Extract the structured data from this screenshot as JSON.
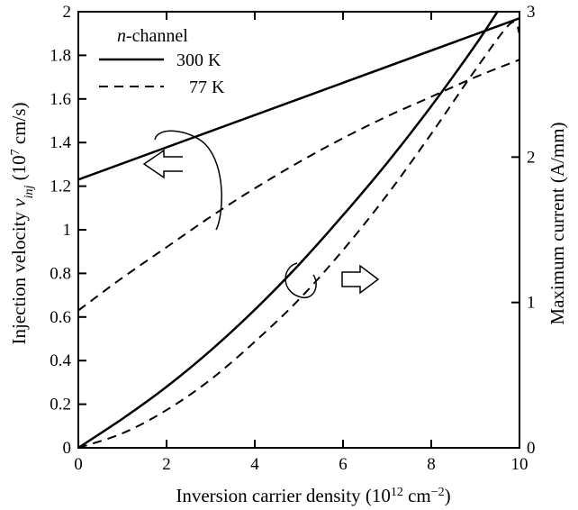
{
  "chart_data": {
    "type": "line",
    "xlabel": "Inversion carrier density (10¹² cm⁻²)",
    "ylabel_left": "Injection velocity v_inj (10⁷ cm/s)",
    "ylabel_right": "Maximum current (A/mm)",
    "xlim": [
      0,
      10
    ],
    "ylim_left": [
      0,
      2
    ],
    "ylim_right": [
      0,
      3
    ],
    "x_ticks": [
      "0",
      "2",
      "4",
      "6",
      "8",
      "10"
    ],
    "y_left_ticks": [
      "0",
      "0.2",
      "0.4",
      "0.6",
      "0.8",
      "1",
      "1.2",
      "1.4",
      "1.6",
      "1.8",
      "2"
    ],
    "y_right_ticks": [
      "0",
      "1",
      "2",
      "3"
    ],
    "grid": false,
    "legend": {
      "title": "n-channel",
      "title_italic_part": "n",
      "title_rest": "-channel",
      "placement": "top-left",
      "entries": [
        {
          "label": "300 K",
          "style": "solid"
        },
        {
          "label": "77 K",
          "style": "dashed"
        }
      ]
    },
    "series": [
      {
        "label": "300 K",
        "style": "solid",
        "axis": "left",
        "x": [
          0,
          10
        ],
        "y": [
          1.23,
          1.97
        ]
      },
      {
        "label": "77 K",
        "style": "dashed",
        "axis": "left",
        "x": [
          0,
          1,
          2,
          3,
          4,
          5,
          6,
          7,
          8,
          9,
          10
        ],
        "y": [
          0.63,
          0.78,
          0.92,
          1.06,
          1.19,
          1.31,
          1.42,
          1.52,
          1.61,
          1.7,
          1.78
        ]
      },
      {
        "label": "300 K",
        "style": "solid",
        "axis": "right",
        "x": [
          0,
          1,
          2,
          3,
          4,
          5,
          6,
          7,
          8,
          9,
          9.5
        ],
        "y": [
          0.0,
          0.2,
          0.42,
          0.67,
          0.95,
          1.26,
          1.6,
          1.96,
          2.35,
          2.77,
          3.0
        ]
      },
      {
        "label": "77 K",
        "style": "dashed",
        "axis": "right",
        "x": [
          0,
          1,
          2,
          3,
          4,
          5,
          6,
          7,
          8,
          9,
          9.8,
          10
        ],
        "y": [
          0.0,
          0.1,
          0.26,
          0.47,
          0.73,
          1.02,
          1.36,
          1.74,
          2.16,
          2.6,
          2.92,
          2.85
        ]
      }
    ],
    "annotations": [
      {
        "type": "arrow",
        "direction": "left",
        "refers_to": "left axis"
      },
      {
        "type": "arrow",
        "direction": "right",
        "refers_to": "right axis"
      }
    ]
  }
}
